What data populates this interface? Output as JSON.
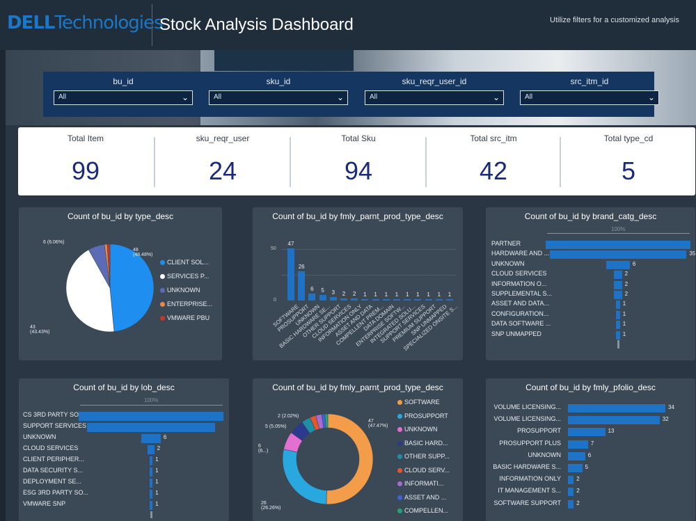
{
  "header": {
    "logo_dell": "DELL",
    "logo_tech": "Technologies",
    "title": "Stock Analysis Dashboard",
    "tagline": "Utilize filters for a customized analysis"
  },
  "filters": [
    {
      "label": "bu_id",
      "value": "All"
    },
    {
      "label": "sku_id",
      "value": "All"
    },
    {
      "label": "sku_reqr_user_id",
      "value": "All"
    },
    {
      "label": "src_itm_id",
      "value": "All"
    }
  ],
  "kpis": [
    {
      "label": "Total Item",
      "value": "99"
    },
    {
      "label": "sku_reqr_user",
      "value": "24"
    },
    {
      "label": "Total Sku",
      "value": "94"
    },
    {
      "label": "Total src_itm",
      "value": "42"
    },
    {
      "label": "Total type_cd",
      "value": "5"
    }
  ],
  "chart_data": [
    {
      "type": "pie",
      "title": "Count of bu_id by type_desc",
      "categories": [
        "CLIENT SOL...",
        "SERVICES P...",
        "UNKNOWN",
        "ENTERPRISE...",
        "VMWARE PBU"
      ],
      "values": [
        48,
        43,
        6,
        1,
        1
      ],
      "colors": [
        "#1f8ef1",
        "#ffffff",
        "#5b6bb5",
        "#e8894a",
        "#c0392b"
      ],
      "data_labels": [
        {
          "value": "48",
          "pct": "(48.48%)"
        },
        {
          "value": "43",
          "pct": "(43.43%)"
        },
        {
          "value": "6",
          "pct": "(6.06%)"
        }
      ]
    },
    {
      "type": "bar",
      "title": "Count of bu_id by fmly_parnt_prod_type_desc",
      "categories": [
        "SOFTWARE",
        "PROSUPPORT",
        "UNKNOWN",
        "BASIC HARDWARE SE...",
        "OTHER SUPPORT",
        "CLOUD SERVICES",
        "INFORMATION ONLY",
        "ASSET AND DATA",
        "COMPELLENT PREM...",
        "DATA DOMAIN",
        "ENTERPRISE SOFTW...",
        "INTEGRATED SOLU...",
        "SUPPORT SERVICES",
        "PREMIUM SUPPORT",
        "SNP UNMAPPED",
        "SPECIALIZED ONSITE S..."
      ],
      "values": [
        47,
        26,
        6,
        5,
        3,
        2,
        2,
        1,
        1,
        1,
        1,
        1,
        1,
        1,
        1,
        1
      ],
      "value_labels": [
        "47",
        "26",
        "6",
        "5",
        "3",
        "2",
        "2",
        "1",
        "1",
        "1",
        "1",
        "1",
        "1",
        "1",
        "1",
        "1"
      ],
      "yticks": [
        "50",
        "0"
      ],
      "ylim": [
        0,
        50
      ]
    },
    {
      "type": "bar",
      "orientation": "horizontal",
      "title": "Count of bu_id by brand_catg_desc",
      "axis_label": "100%",
      "categories": [
        "PARTNER",
        "HARDWARE AND ...",
        "UNKNOWN",
        "CLOUD SERVICES",
        "INFORMATION O...",
        "SUPPLEMENTAL S...",
        "ASSET AND DATA...",
        "CONFIGURATION...",
        "DATA SOFTWARE ...",
        "SNP UNMAPPED"
      ],
      "values": [
        37,
        35,
        6,
        2,
        2,
        2,
        1,
        1,
        1,
        1
      ],
      "value_labels": [
        "",
        "35",
        "6",
        "2",
        "2",
        "2",
        "1",
        "1",
        "1",
        "1"
      ]
    },
    {
      "type": "bar",
      "orientation": "horizontal",
      "title": "Count of bu_id by lob_desc",
      "axis_label": "100%",
      "categories": [
        "CS 3RD PARTY SO...",
        "SUPPORT SERVICES",
        "UNKNOWN",
        "CLOUD SERVICES",
        "CLIENT PERIPHER...",
        "DATA SECURITY S...",
        "DEPLOYMENT SE...",
        "ESG 3RD PARTY SO...",
        "VMWARE SNP"
      ],
      "values": [
        45,
        40,
        6,
        2,
        1,
        1,
        1,
        1,
        1
      ],
      "value_labels": [
        "",
        "",
        "6",
        "2",
        "1",
        "1",
        "1",
        "1",
        "1"
      ]
    },
    {
      "type": "pie",
      "title": "Count of bu_id by fmly_parnt_prod_type_desc",
      "categories": [
        "SOFTWARE",
        "PROSUPPORT",
        "UNKNOWN",
        "BASIC HARD...",
        "OTHER SUPP...",
        "CLOUD SERV...",
        "INFORMATI...",
        "ASSET AND ...",
        "COMPELLEN..."
      ],
      "values": [
        47,
        26,
        6,
        5,
        3,
        2,
        2,
        1,
        1
      ],
      "colors": [
        "#f39c4a",
        "#29a8e0",
        "#e36fd0",
        "#2b3a8c",
        "#1e8fa6",
        "#e4572e",
        "#a86bd1",
        "#3a64d8",
        "#1fa37a"
      ],
      "data_labels": [
        {
          "value": "47",
          "pct": "(47.47%)"
        },
        {
          "value": "26",
          "pct": "(26.26%)"
        },
        {
          "value": "6",
          "pct": "(6...)"
        },
        {
          "value": "5",
          "pct": "(5.05%)"
        },
        {
          "value": "2",
          "pct": "(2.02%)"
        }
      ]
    },
    {
      "type": "bar",
      "orientation": "horizontal",
      "title": "Count of bu_id by fmly_pfolio_desc",
      "categories": [
        "VOLUME LICENSING...",
        "VOLUME LICENSING...",
        "PROSUPPORT",
        "PROSUPPORT PLUS",
        "UNKNOWN",
        "BASIC HARDWARE S...",
        "INFORMATION ONLY",
        "IT MANAGEMENT S...",
        "SOFTWARE SUPPORT"
      ],
      "values": [
        34,
        32,
        13,
        7,
        6,
        5,
        2,
        2,
        2
      ],
      "value_labels": [
        "34",
        "32",
        "13",
        "7",
        "6",
        "5",
        "2",
        "2",
        "2"
      ]
    }
  ]
}
